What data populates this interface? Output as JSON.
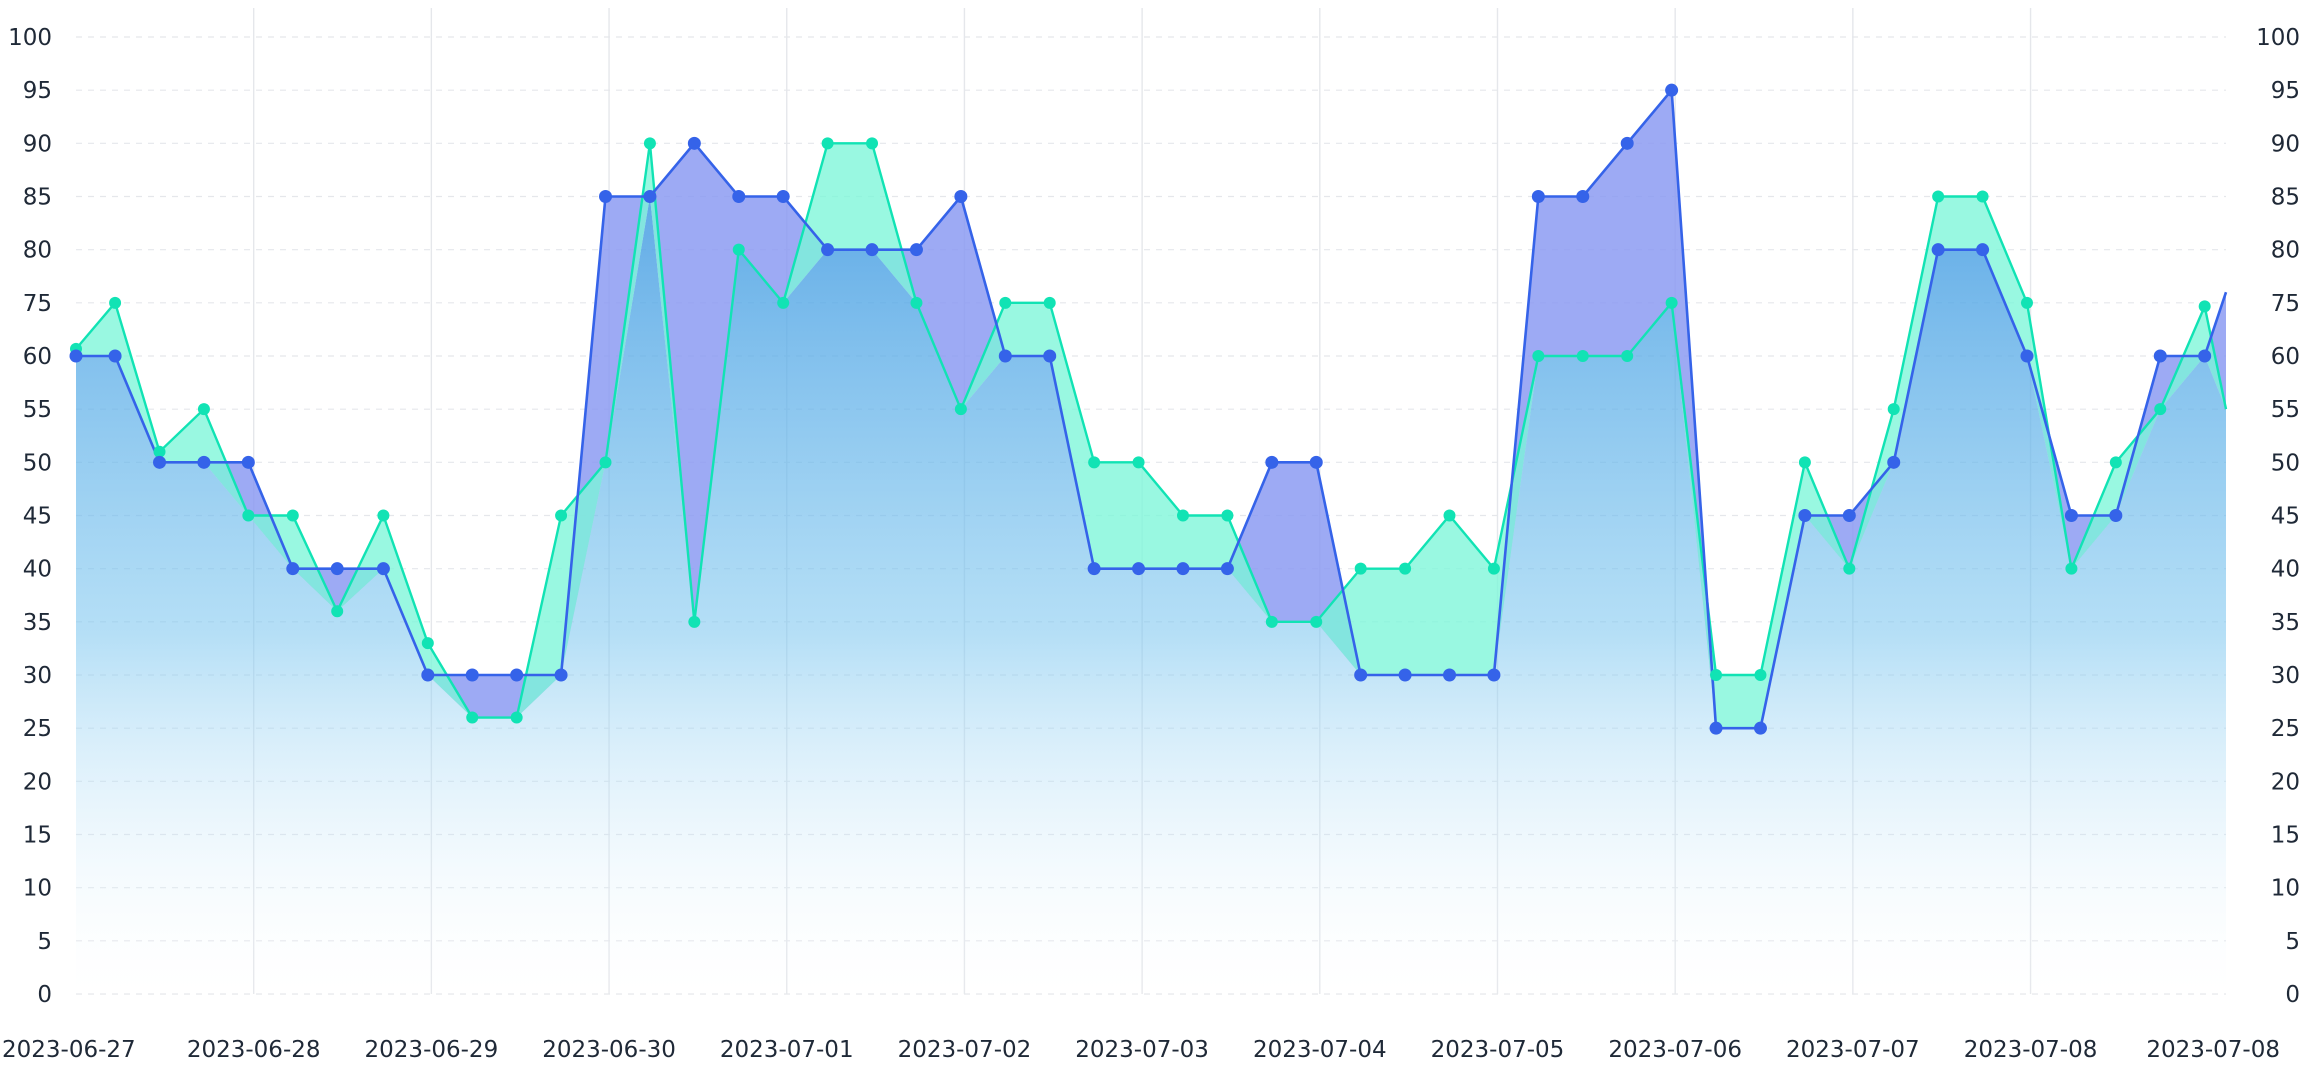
{
  "chart_data": {
    "type": "area",
    "x_tick_labels": [
      "2023-06-27",
      "2023-06-28",
      "2023-06-29",
      "2023-06-30",
      "2023-07-01",
      "2023-07-02",
      "2023-07-03",
      "2023-07-04",
      "2023-07-05",
      "2023-07-06",
      "2023-07-07",
      "2023-07-08",
      "2023-07-08"
    ],
    "y_tick_labels": [
      "0",
      "5",
      "10",
      "15",
      "20",
      "25",
      "30",
      "35",
      "40",
      "45",
      "50",
      "55",
      "60",
      "75",
      "80",
      "85",
      "90",
      "95",
      "100"
    ],
    "x_range": [
      0,
      12.1
    ],
    "grid": true,
    "legend": "none",
    "colors": {
      "blue_line": "#3563e9",
      "blue_fill": "#8797f2",
      "teal_line": "#11e3b4",
      "teal_fill": "#7cf6d9",
      "area_gradient_top": "#4a9fe3",
      "area_gradient_bottom": "#ffffff",
      "grid": "#e5e7eb",
      "tick_text": "#1f2937"
    },
    "series": [
      {
        "points": [
          [
            0.0,
            60
          ],
          [
            0.22,
            60
          ],
          [
            0.47,
            50
          ],
          [
            0.72,
            50
          ],
          [
            0.97,
            50
          ],
          [
            1.22,
            40
          ],
          [
            1.47,
            40
          ],
          [
            1.73,
            40
          ],
          [
            1.98,
            30
          ],
          [
            2.23,
            30
          ],
          [
            2.48,
            30
          ],
          [
            2.73,
            30
          ],
          [
            2.98,
            85
          ],
          [
            3.23,
            85
          ],
          [
            3.48,
            90
          ],
          [
            3.73,
            85
          ],
          [
            3.98,
            85
          ],
          [
            4.23,
            80
          ],
          [
            4.48,
            80
          ],
          [
            4.73,
            80
          ],
          [
            4.98,
            85
          ],
          [
            5.23,
            60
          ],
          [
            5.48,
            60
          ],
          [
            5.73,
            40
          ],
          [
            5.98,
            40
          ],
          [
            6.23,
            40
          ],
          [
            6.48,
            40
          ],
          [
            6.73,
            50
          ],
          [
            6.98,
            50
          ],
          [
            7.23,
            30
          ],
          [
            7.48,
            30
          ],
          [
            7.73,
            30
          ],
          [
            7.98,
            30
          ],
          [
            8.23,
            85
          ],
          [
            8.48,
            85
          ],
          [
            8.73,
            90
          ],
          [
            8.98,
            95
          ],
          [
            9.23,
            25
          ],
          [
            9.48,
            25
          ],
          [
            9.73,
            45
          ],
          [
            9.98,
            45
          ],
          [
            10.23,
            50
          ],
          [
            10.48,
            80
          ],
          [
            10.73,
            80
          ],
          [
            10.98,
            60
          ],
          [
            11.23,
            45
          ],
          [
            11.48,
            45
          ],
          [
            11.73,
            60
          ],
          [
            11.98,
            60
          ],
          [
            12.1,
            76
          ]
        ]
      },
      {
        "points": [
          [
            0.0,
            62
          ],
          [
            0.22,
            75
          ],
          [
            0.47,
            51
          ],
          [
            0.72,
            55
          ],
          [
            0.97,
            45
          ],
          [
            1.22,
            45
          ],
          [
            1.47,
            36
          ],
          [
            1.73,
            45
          ],
          [
            1.98,
            33
          ],
          [
            2.23,
            26
          ],
          [
            2.48,
            26
          ],
          [
            2.73,
            45
          ],
          [
            2.98,
            50
          ],
          [
            3.23,
            90
          ],
          [
            3.48,
            35
          ],
          [
            3.73,
            80
          ],
          [
            3.98,
            75
          ],
          [
            4.23,
            90
          ],
          [
            4.48,
            90
          ],
          [
            4.73,
            75
          ],
          [
            4.98,
            55
          ],
          [
            5.23,
            75
          ],
          [
            5.48,
            75
          ],
          [
            5.73,
            50
          ],
          [
            5.98,
            50
          ],
          [
            6.23,
            45
          ],
          [
            6.48,
            45
          ],
          [
            6.73,
            35
          ],
          [
            6.98,
            35
          ],
          [
            7.23,
            40
          ],
          [
            7.48,
            40
          ],
          [
            7.73,
            45
          ],
          [
            7.98,
            40
          ],
          [
            8.23,
            60
          ],
          [
            8.48,
            60
          ],
          [
            8.73,
            60
          ],
          [
            8.98,
            75
          ],
          [
            9.23,
            30
          ],
          [
            9.48,
            30
          ],
          [
            9.73,
            50
          ],
          [
            9.98,
            40
          ],
          [
            10.23,
            55
          ],
          [
            10.48,
            85
          ],
          [
            10.73,
            85
          ],
          [
            10.98,
            75
          ],
          [
            11.23,
            40
          ],
          [
            11.48,
            50
          ],
          [
            11.73,
            55
          ],
          [
            11.98,
            74
          ],
          [
            12.1,
            55
          ]
        ]
      }
    ]
  }
}
